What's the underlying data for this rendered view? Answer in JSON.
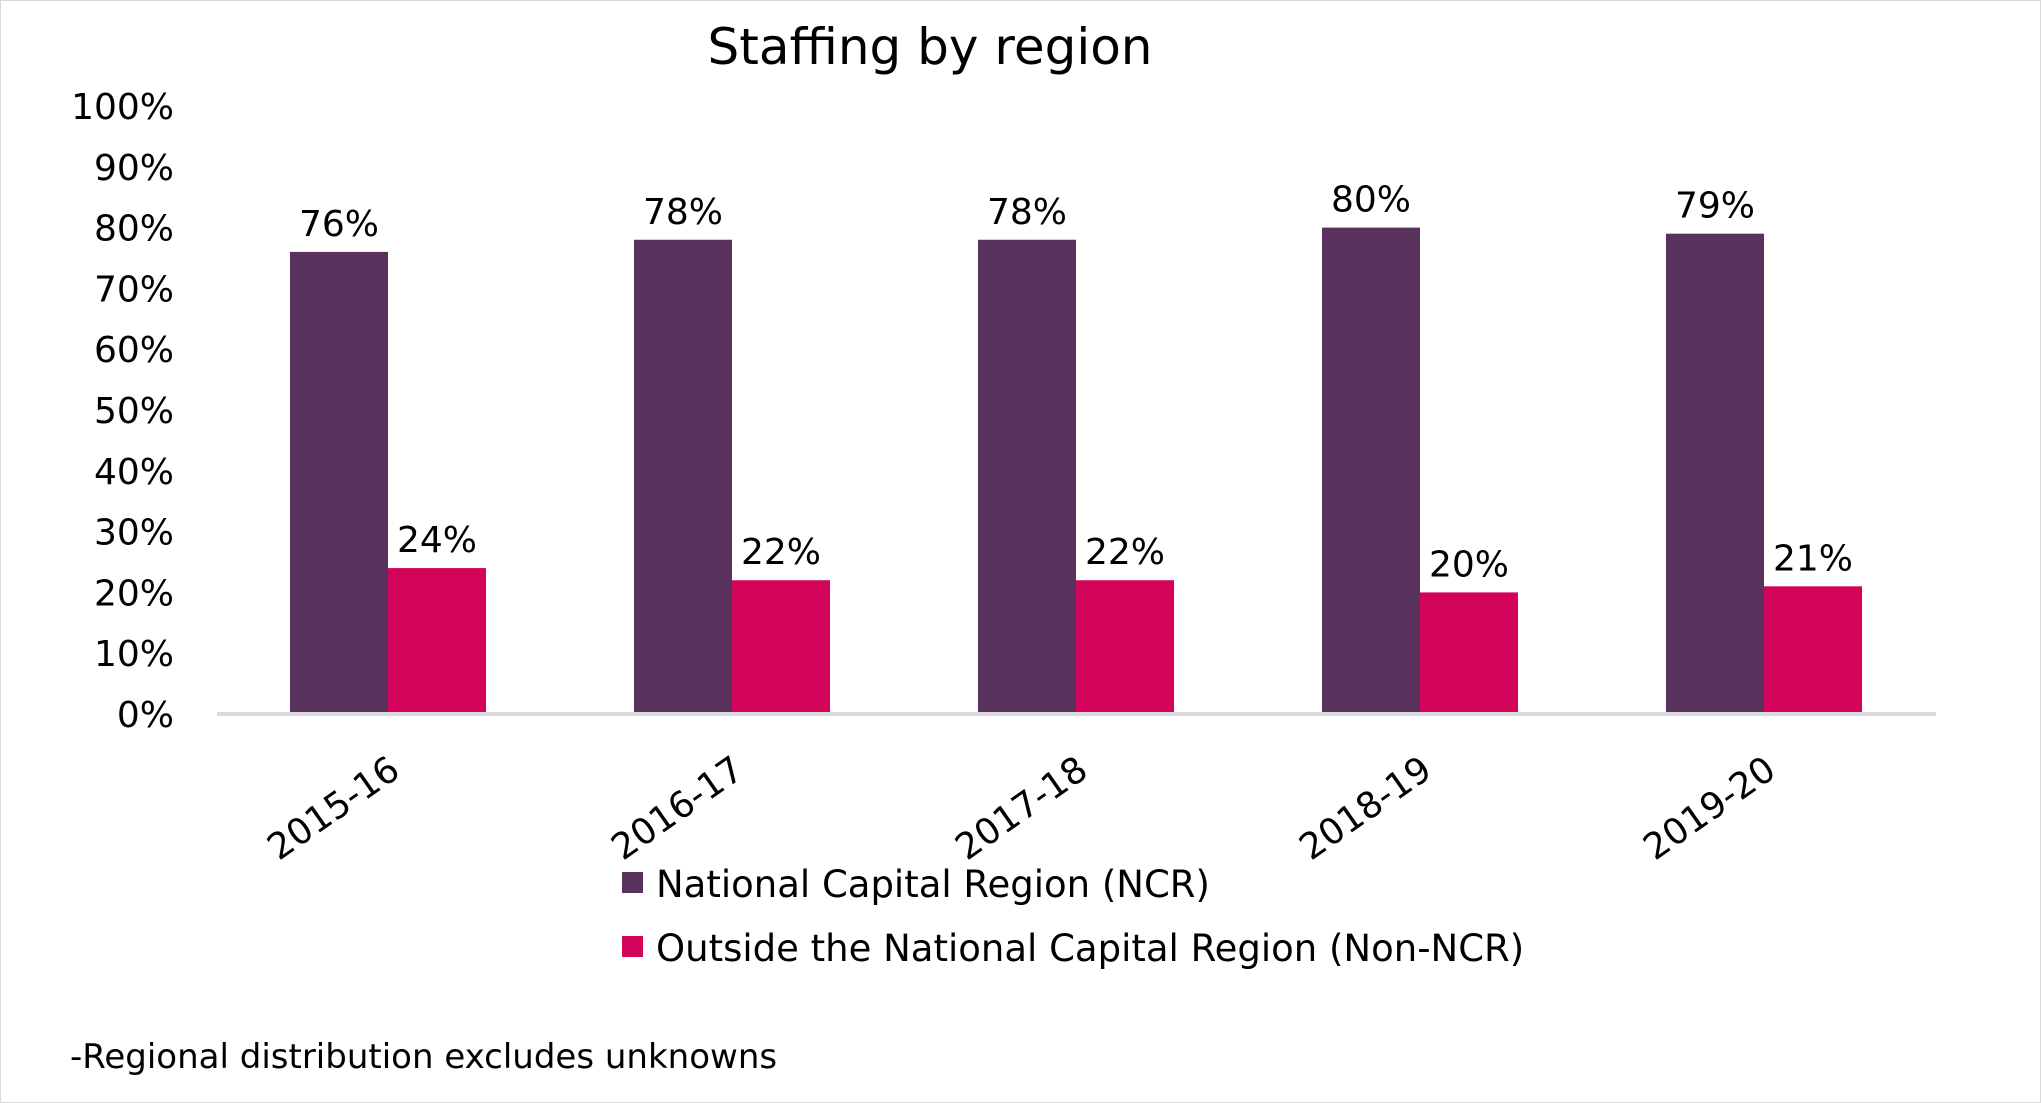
{
  "chart_data": {
    "type": "bar",
    "title": "Staffing by region",
    "xlabel": "",
    "ylabel": "",
    "categories": [
      "2015-16",
      "2016-17",
      "2017-18",
      "2018-19",
      "2019-20"
    ],
    "series": [
      {
        "name": "National Capital Region (NCR)",
        "values": [
          76,
          78,
          78,
          80,
          79
        ],
        "labels": [
          "76%",
          "78%",
          "78%",
          "80%",
          "79%"
        ],
        "color": "#58315c"
      },
      {
        "name": "Outside the National Capital Region (Non-NCR)",
        "values": [
          24,
          22,
          22,
          20,
          21
        ],
        "labels": [
          "24%",
          "22%",
          "22%",
          "20%",
          "21%"
        ],
        "color": "#d4035a"
      }
    ],
    "ylim": [
      0,
      100
    ],
    "y_ticks": [
      "0%",
      "10%",
      "20%",
      "30%",
      "40%",
      "50%",
      "60%",
      "70%",
      "80%",
      "90%",
      "100%"
    ],
    "grid": false,
    "legend_position": "bottom",
    "axis_color": "#d9d9d9"
  },
  "footnote": "-Regional distribution excludes unknowns"
}
